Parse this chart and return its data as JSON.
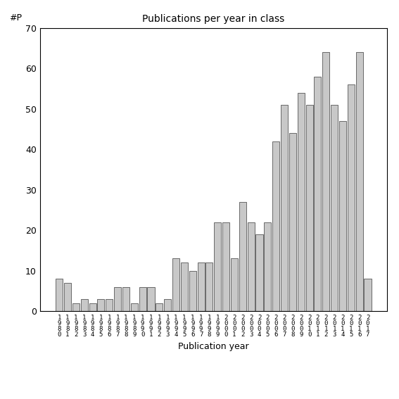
{
  "title": "Publications per year in class",
  "xlabel": "Publication year",
  "ylabel": "#P",
  "ylim": [
    0,
    70
  ],
  "yticks": [
    0,
    10,
    20,
    30,
    40,
    50,
    60,
    70
  ],
  "bar_color": "#c8c8c8",
  "bar_edgecolor": "#555555",
  "years": [
    1980,
    1981,
    1982,
    1983,
    1984,
    1985,
    1986,
    1987,
    1988,
    1989,
    1990,
    1991,
    1992,
    1993,
    1994,
    1995,
    1996,
    1997,
    1998,
    1999,
    2000,
    2001,
    2002,
    2003,
    2004,
    2005,
    2006,
    2007,
    2008,
    2009,
    2010,
    2011,
    2012,
    2013,
    2014,
    2015,
    2016,
    2017
  ],
  "values": [
    8,
    7,
    2,
    3,
    2,
    3,
    3,
    6,
    6,
    2,
    6,
    6,
    2,
    3,
    13,
    12,
    10,
    12,
    12,
    22,
    22,
    13,
    27,
    22,
    19,
    22,
    42,
    51,
    44,
    54,
    51,
    58,
    64,
    51,
    47,
    56,
    64,
    8
  ],
  "background_color": "#ffffff"
}
